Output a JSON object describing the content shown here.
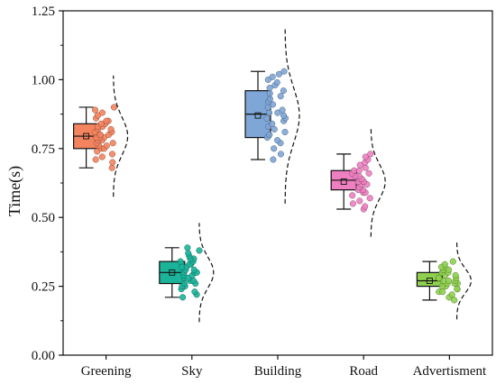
{
  "chart_data": {
    "type": "box",
    "title": "",
    "xlabel": "",
    "ylabel": "Time(s)",
    "ylim": [
      0.0,
      1.25
    ],
    "yticks": [
      "0.00",
      "0.25",
      "0.50",
      "0.75",
      "1.00",
      "1.25"
    ],
    "grid": false,
    "categories": [
      "Greening",
      "Sky",
      "Building",
      "Road",
      "Advertisment"
    ],
    "series": [
      {
        "category": "Greening",
        "color": "#F4845F",
        "whisker_low": 0.68,
        "q1": 0.75,
        "median": 0.795,
        "q3": 0.84,
        "whisker_high": 0.9,
        "mean": 0.795,
        "points": [
          0.68,
          0.7,
          0.71,
          0.72,
          0.73,
          0.74,
          0.75,
          0.75,
          0.76,
          0.76,
          0.77,
          0.77,
          0.78,
          0.78,
          0.79,
          0.79,
          0.79,
          0.8,
          0.8,
          0.8,
          0.81,
          0.81,
          0.82,
          0.82,
          0.83,
          0.83,
          0.84,
          0.84,
          0.85,
          0.85,
          0.86,
          0.87,
          0.88,
          0.89,
          0.9
        ]
      },
      {
        "category": "Sky",
        "color": "#1BB39A",
        "whisker_low": 0.21,
        "q1": 0.26,
        "median": 0.3,
        "q3": 0.34,
        "whisker_high": 0.39,
        "mean": 0.3,
        "points": [
          0.21,
          0.22,
          0.23,
          0.24,
          0.25,
          0.25,
          0.26,
          0.26,
          0.27,
          0.27,
          0.28,
          0.28,
          0.29,
          0.29,
          0.3,
          0.3,
          0.3,
          0.31,
          0.31,
          0.32,
          0.32,
          0.33,
          0.33,
          0.34,
          0.34,
          0.35,
          0.35,
          0.36,
          0.37,
          0.38,
          0.39
        ]
      },
      {
        "category": "Building",
        "color": "#7EA6D6",
        "whisker_low": 0.71,
        "q1": 0.79,
        "median": 0.875,
        "q3": 0.96,
        "whisker_high": 1.03,
        "mean": 0.87,
        "points": [
          0.71,
          0.73,
          0.75,
          0.77,
          0.78,
          0.79,
          0.8,
          0.81,
          0.82,
          0.83,
          0.84,
          0.85,
          0.86,
          0.86,
          0.87,
          0.88,
          0.88,
          0.89,
          0.9,
          0.91,
          0.92,
          0.93,
          0.94,
          0.95,
          0.96,
          0.97,
          0.98,
          0.99,
          1.0,
          1.01,
          1.02,
          1.03
        ]
      },
      {
        "category": "Road",
        "color": "#EE7FC0",
        "whisker_low": 0.53,
        "q1": 0.6,
        "median": 0.635,
        "q3": 0.67,
        "whisker_high": 0.73,
        "mean": 0.63,
        "points": [
          0.53,
          0.54,
          0.55,
          0.56,
          0.57,
          0.58,
          0.59,
          0.59,
          0.6,
          0.6,
          0.61,
          0.61,
          0.62,
          0.62,
          0.63,
          0.63,
          0.63,
          0.64,
          0.64,
          0.65,
          0.65,
          0.66,
          0.66,
          0.67,
          0.67,
          0.68,
          0.69,
          0.7,
          0.71,
          0.72,
          0.73
        ]
      },
      {
        "category": "Advertisment",
        "color": "#8FD14F",
        "whisker_low": 0.2,
        "q1": 0.25,
        "median": 0.27,
        "q3": 0.3,
        "whisker_high": 0.34,
        "mean": 0.27,
        "points": [
          0.2,
          0.21,
          0.22,
          0.23,
          0.23,
          0.24,
          0.24,
          0.25,
          0.25,
          0.26,
          0.26,
          0.26,
          0.27,
          0.27,
          0.27,
          0.28,
          0.28,
          0.28,
          0.29,
          0.29,
          0.3,
          0.3,
          0.31,
          0.31,
          0.32,
          0.32,
          0.33,
          0.34
        ]
      }
    ]
  }
}
